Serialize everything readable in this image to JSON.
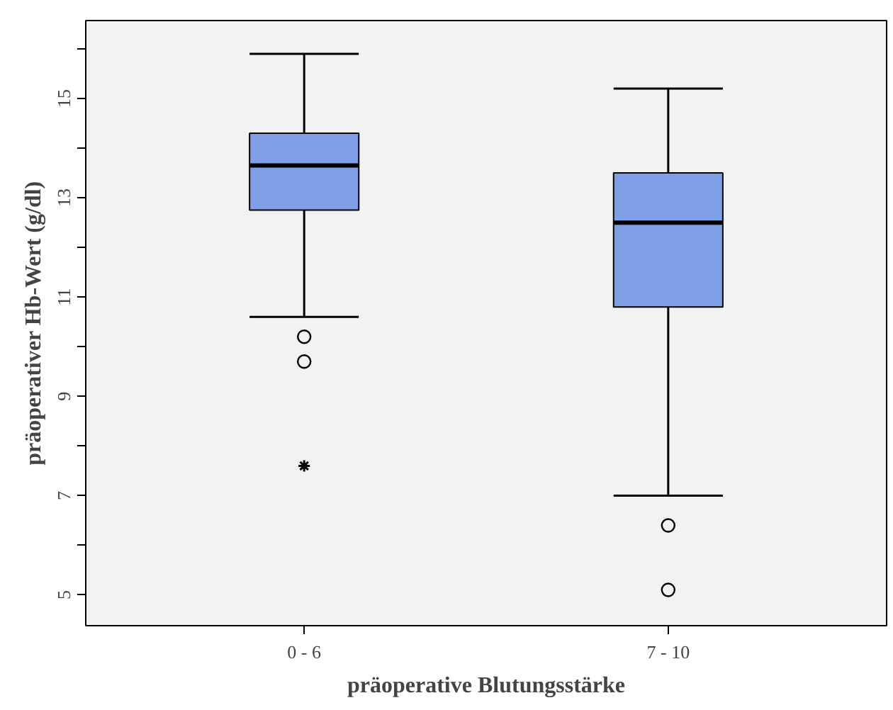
{
  "chart_data": {
    "type": "box",
    "xlabel": "präoperative Blutungsstärke",
    "ylabel": "präoperativer Hb-Wert (g/dl)",
    "categories": [
      "0 - 6",
      "7 - 10"
    ],
    "boxes": [
      {
        "low": 10.6,
        "q1": 12.75,
        "median": 13.65,
        "q3": 14.3,
        "high": 15.9,
        "outliers": [
          10.2,
          9.7,
          7.6
        ]
      },
      {
        "low": 7.0,
        "q1": 10.8,
        "median": 12.5,
        "q3": 13.5,
        "high": 15.2,
        "outliers": [
          6.4,
          5.1
        ]
      }
    ],
    "color": "#7f9fe6",
    "ylim": [
      4.38,
      16.57
    ],
    "yticks": [
      5,
      {
        "value": 6,
        "label": null
      },
      7,
      {
        "value": 8,
        "label": null
      },
      9,
      {
        "value": 10,
        "label": null
      },
      11,
      {
        "value": 12,
        "label": null
      },
      13,
      {
        "value": 14,
        "label": null
      },
      15,
      {
        "value": 16,
        "label": null
      }
    ],
    "grid": false
  }
}
